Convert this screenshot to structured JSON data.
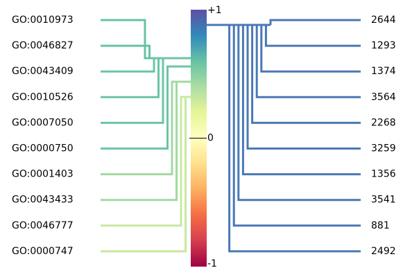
{
  "left_labels": [
    "GO:0010973",
    "GO:0046827",
    "GO:0043409",
    "GO:0010526",
    "GO:0007050",
    "GO:0000750",
    "GO:0001403",
    "GO:0043433",
    "GO:0046777",
    "GO:0000747"
  ],
  "left_colors": [
    "#66c2a5",
    "#66c2a5",
    "#6cc4a4",
    "#6cc4a4",
    "#6cc4a4",
    "#6dc4a4",
    "#a3d9a2",
    "#a3d9a2",
    "#c8e9a0",
    "#c8e9a0"
  ],
  "right_labels": [
    "2644",
    "1293",
    "1374",
    "3564",
    "2268",
    "3259",
    "1356",
    "3541",
    "881",
    "2492"
  ],
  "right_color": "#4a78b5",
  "colorbar": {
    "ticks": [
      {
        "value": 1,
        "label": "+1"
      },
      0,
      {
        "value": -1,
        "label": "-1"
      }
    ]
  }
}
